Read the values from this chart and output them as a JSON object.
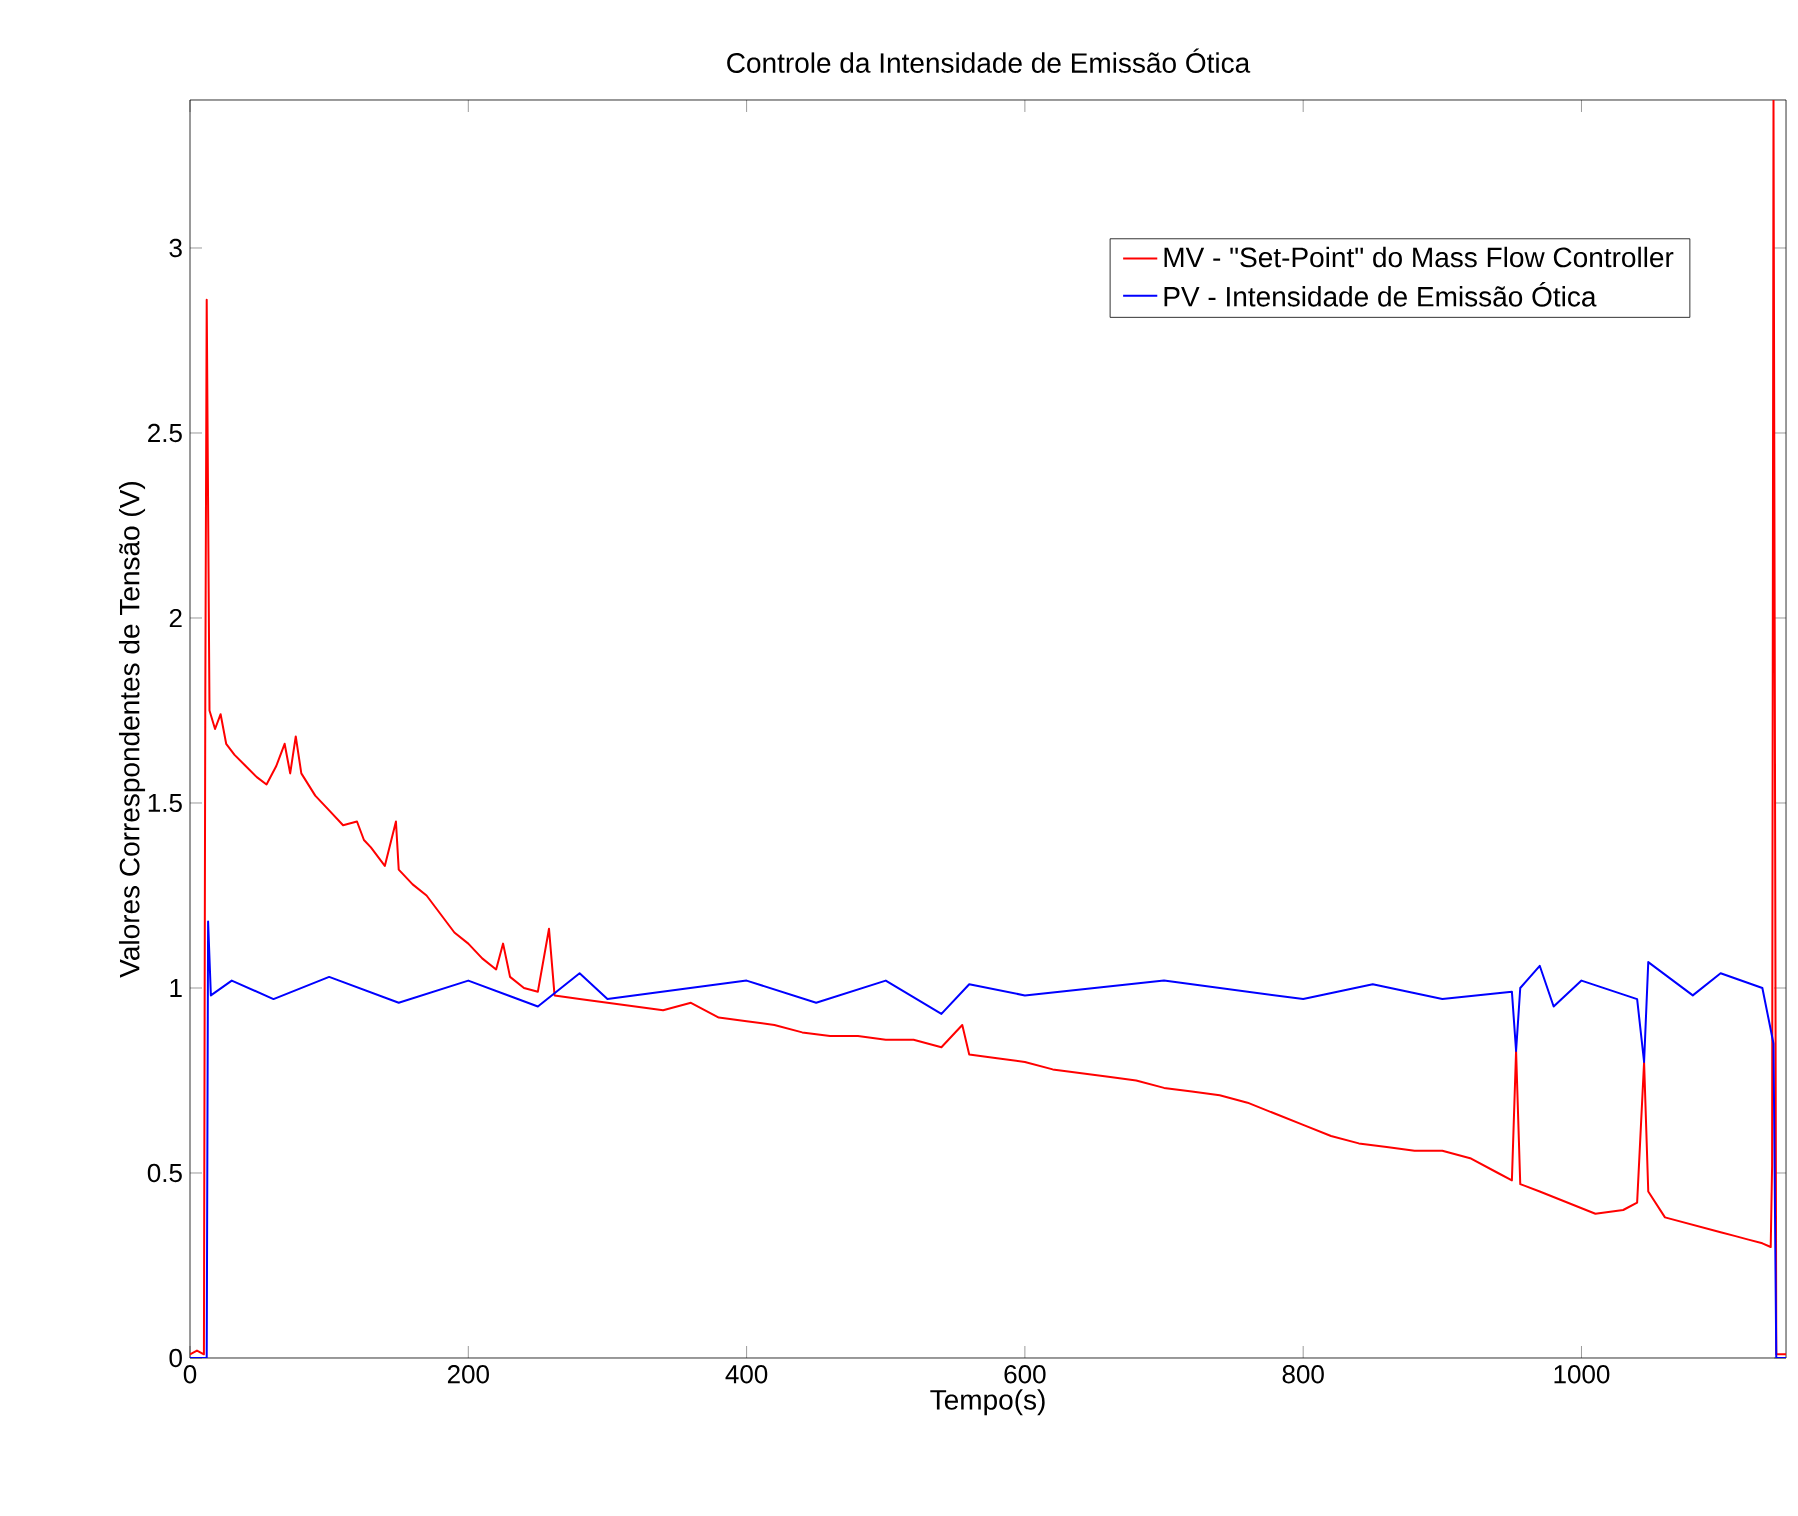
{
  "chart_data": {
    "type": "line",
    "title": "Controle da Intensidade de Emissão Ótica",
    "xlabel": "Tempo(s)",
    "ylabel": "Valores Correspondentes de Tensão (V)",
    "xlim": [
      0,
      1147
    ],
    "ylim": [
      0,
      3.4
    ],
    "xticks": [
      0,
      200,
      400,
      600,
      800,
      1000
    ],
    "yticks": [
      0,
      0.5,
      1,
      1.5,
      2,
      2.5,
      3
    ],
    "legend": "top right",
    "grid": false,
    "series": [
      {
        "name": "MV - \"Set-Point\" do Mass Flow Controller",
        "color": "#ff0000",
        "x": [
          0,
          5,
          10,
          11,
          12,
          14,
          18,
          22,
          26,
          32,
          40,
          48,
          55,
          62,
          68,
          72,
          76,
          80,
          90,
          100,
          110,
          120,
          125,
          130,
          140,
          148,
          150,
          160,
          170,
          180,
          190,
          200,
          210,
          220,
          225,
          230,
          240,
          250,
          258,
          262,
          280,
          300,
          320,
          340,
          360,
          380,
          400,
          420,
          440,
          460,
          480,
          500,
          520,
          540,
          555,
          560,
          580,
          600,
          620,
          640,
          660,
          680,
          700,
          720,
          740,
          760,
          780,
          800,
          820,
          840,
          860,
          880,
          900,
          920,
          940,
          950,
          953,
          956,
          970,
          990,
          1010,
          1030,
          1040,
          1045,
          1048,
          1060,
          1080,
          1100,
          1110,
          1120,
          1130,
          1136,
          1137,
          1138,
          1140,
          1147
        ],
        "values": [
          0.01,
          0.02,
          0.01,
          1.8,
          2.86,
          1.75,
          1.7,
          1.74,
          1.66,
          1.63,
          1.6,
          1.57,
          1.55,
          1.6,
          1.66,
          1.58,
          1.68,
          1.58,
          1.52,
          1.48,
          1.44,
          1.45,
          1.4,
          1.38,
          1.33,
          1.45,
          1.32,
          1.28,
          1.25,
          1.2,
          1.15,
          1.12,
          1.08,
          1.05,
          1.12,
          1.03,
          1.0,
          0.99,
          1.16,
          0.98,
          0.97,
          0.96,
          0.95,
          0.94,
          0.96,
          0.92,
          0.91,
          0.9,
          0.88,
          0.87,
          0.87,
          0.86,
          0.86,
          0.84,
          0.9,
          0.82,
          0.81,
          0.8,
          0.78,
          0.77,
          0.76,
          0.75,
          0.73,
          0.72,
          0.71,
          0.69,
          0.66,
          0.63,
          0.6,
          0.58,
          0.57,
          0.56,
          0.56,
          0.54,
          0.5,
          0.48,
          0.83,
          0.47,
          0.45,
          0.42,
          0.39,
          0.4,
          0.42,
          0.8,
          0.45,
          0.38,
          0.36,
          0.34,
          0.33,
          0.32,
          0.31,
          0.3,
          0.52,
          3.4,
          0.01,
          0.01
        ]
      },
      {
        "name": "PV - Intensidade de Emissão Ótica",
        "color": "#0000ff",
        "x": [
          0,
          12,
          13,
          15,
          30,
          60,
          100,
          150,
          200,
          250,
          280,
          300,
          400,
          450,
          500,
          540,
          560,
          600,
          700,
          800,
          850,
          900,
          950,
          953,
          956,
          970,
          980,
          1000,
          1040,
          1045,
          1048,
          1080,
          1100,
          1130,
          1138,
          1140,
          1147
        ],
        "values": [
          0,
          0,
          1.18,
          0.98,
          1.02,
          0.97,
          1.03,
          0.96,
          1.02,
          0.95,
          1.04,
          0.97,
          1.02,
          0.96,
          1.02,
          0.93,
          1.01,
          0.98,
          1.02,
          0.97,
          1.01,
          0.97,
          0.99,
          0.83,
          1.0,
          1.06,
          0.95,
          1.02,
          0.97,
          0.8,
          1.07,
          0.98,
          1.04,
          1.0,
          0.85,
          0,
          0
        ]
      }
    ]
  }
}
